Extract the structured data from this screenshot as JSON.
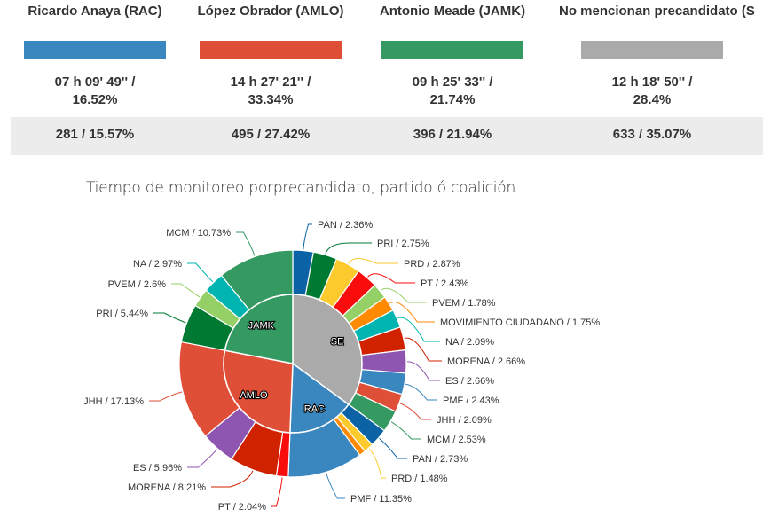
{
  "summary": {
    "columns": [
      {
        "header": "Ricardo Anaya (RAC)",
        "color": "#3a87c0",
        "time": "07 h 09' 49'' /",
        "time_pct": "16.52%",
        "count": "281 / 15.57%"
      },
      {
        "header": "López Obrador (AMLO)",
        "color": "#df4e36",
        "time": "14 h 27' 21'' /",
        "time_pct": "33.34%",
        "count": "495 / 27.42%"
      },
      {
        "header": "Antonio Meade (JAMK)",
        "color": "#349a62",
        "time": "09 h 25' 33'' /",
        "time_pct": "21.74%",
        "count": "396 / 21.94%"
      },
      {
        "header": "No mencionan precandidato (S",
        "color": "#aaaaaa",
        "time": "12 h 18' 50'' /",
        "time_pct": "28.4%",
        "count": "633 / 35.07%"
      }
    ]
  },
  "chart_data": {
    "type": "pie",
    "title": "Tiempo de monitoreo porprecandidato, partido ó coalición",
    "inner": [
      {
        "name": "SE",
        "value": 35.07,
        "color": "#aaaaaa"
      },
      {
        "name": "RAC",
        "value": 15.57,
        "color": "#3a87c0"
      },
      {
        "name": "AMLO",
        "value": 27.42,
        "color": "#df4e36"
      },
      {
        "name": "JAMK",
        "value": 21.94,
        "color": "#349a62"
      }
    ],
    "outer": [
      {
        "group": "SE",
        "slices": [
          {
            "label": "PAN / 2.36%",
            "value": 2.36,
            "color": "#0b62a4"
          },
          {
            "label": "PRI / 2.75%",
            "value": 2.75,
            "color": "#007a33"
          },
          {
            "label": "PRD / 2.87%",
            "value": 2.87,
            "color": "#fdca2e"
          },
          {
            "label": "PT / 2.43%",
            "value": 2.43,
            "color": "#f80c0c"
          },
          {
            "label": "PVEM / 1.78%",
            "value": 1.78,
            "color": "#94d066"
          },
          {
            "label": "MOVIMIENTO CIUDADANO / 1.75%",
            "value": 1.75,
            "color": "#ff8a00"
          },
          {
            "label": "NA / 2.09%",
            "value": 2.09,
            "color": "#00b5b0"
          },
          {
            "label": "MORENA / 2.66%",
            "value": 2.66,
            "color": "#d12200"
          },
          {
            "label": "ES / 2.66%",
            "value": 2.66,
            "color": "#8e56b0"
          },
          {
            "label": "PMF / 2.43%",
            "value": 2.43,
            "color": "#3a87c0"
          },
          {
            "label": "JHH / 2.09%",
            "value": 2.09,
            "color": "#df4e36"
          },
          {
            "label": "MCM / 2.53%",
            "value": 2.53,
            "color": "#349a62"
          }
        ]
      },
      {
        "group": "RAC",
        "slices": [
          {
            "label": "PAN / 2.73%",
            "value": 2.73,
            "color": "#0b62a4"
          },
          {
            "label": "PRD / 1.48%",
            "value": 1.48,
            "color": "#fdca2e"
          },
          {
            "label": "",
            "value": 0.96,
            "color": "#ff8a00"
          },
          {
            "label": "PMF / 11.35%",
            "value": 11.35,
            "color": "#3a87c0"
          }
        ]
      },
      {
        "group": "AMLO",
        "slices": [
          {
            "label": "PT / 2.04%",
            "value": 2.04,
            "color": "#f80c0c"
          },
          {
            "label": "MORENA / 8.21%",
            "value": 8.21,
            "color": "#d12200"
          },
          {
            "label": "ES / 5.96%",
            "value": 5.96,
            "color": "#8e56b0"
          },
          {
            "label": "JHH / 17.13%",
            "value": 17.13,
            "color": "#df4e36"
          }
        ]
      },
      {
        "group": "JAMK",
        "slices": [
          {
            "label": "PRI / 5.44%",
            "value": 5.44,
            "color": "#007a33"
          },
          {
            "label": "PVEM / 2.6%",
            "value": 2.6,
            "color": "#94d066"
          },
          {
            "label": "NA / 2.97%",
            "value": 2.97,
            "color": "#00b5b0"
          },
          {
            "label": "MCM / 10.73%",
            "value": 10.73,
            "color": "#349a62"
          }
        ]
      }
    ]
  }
}
